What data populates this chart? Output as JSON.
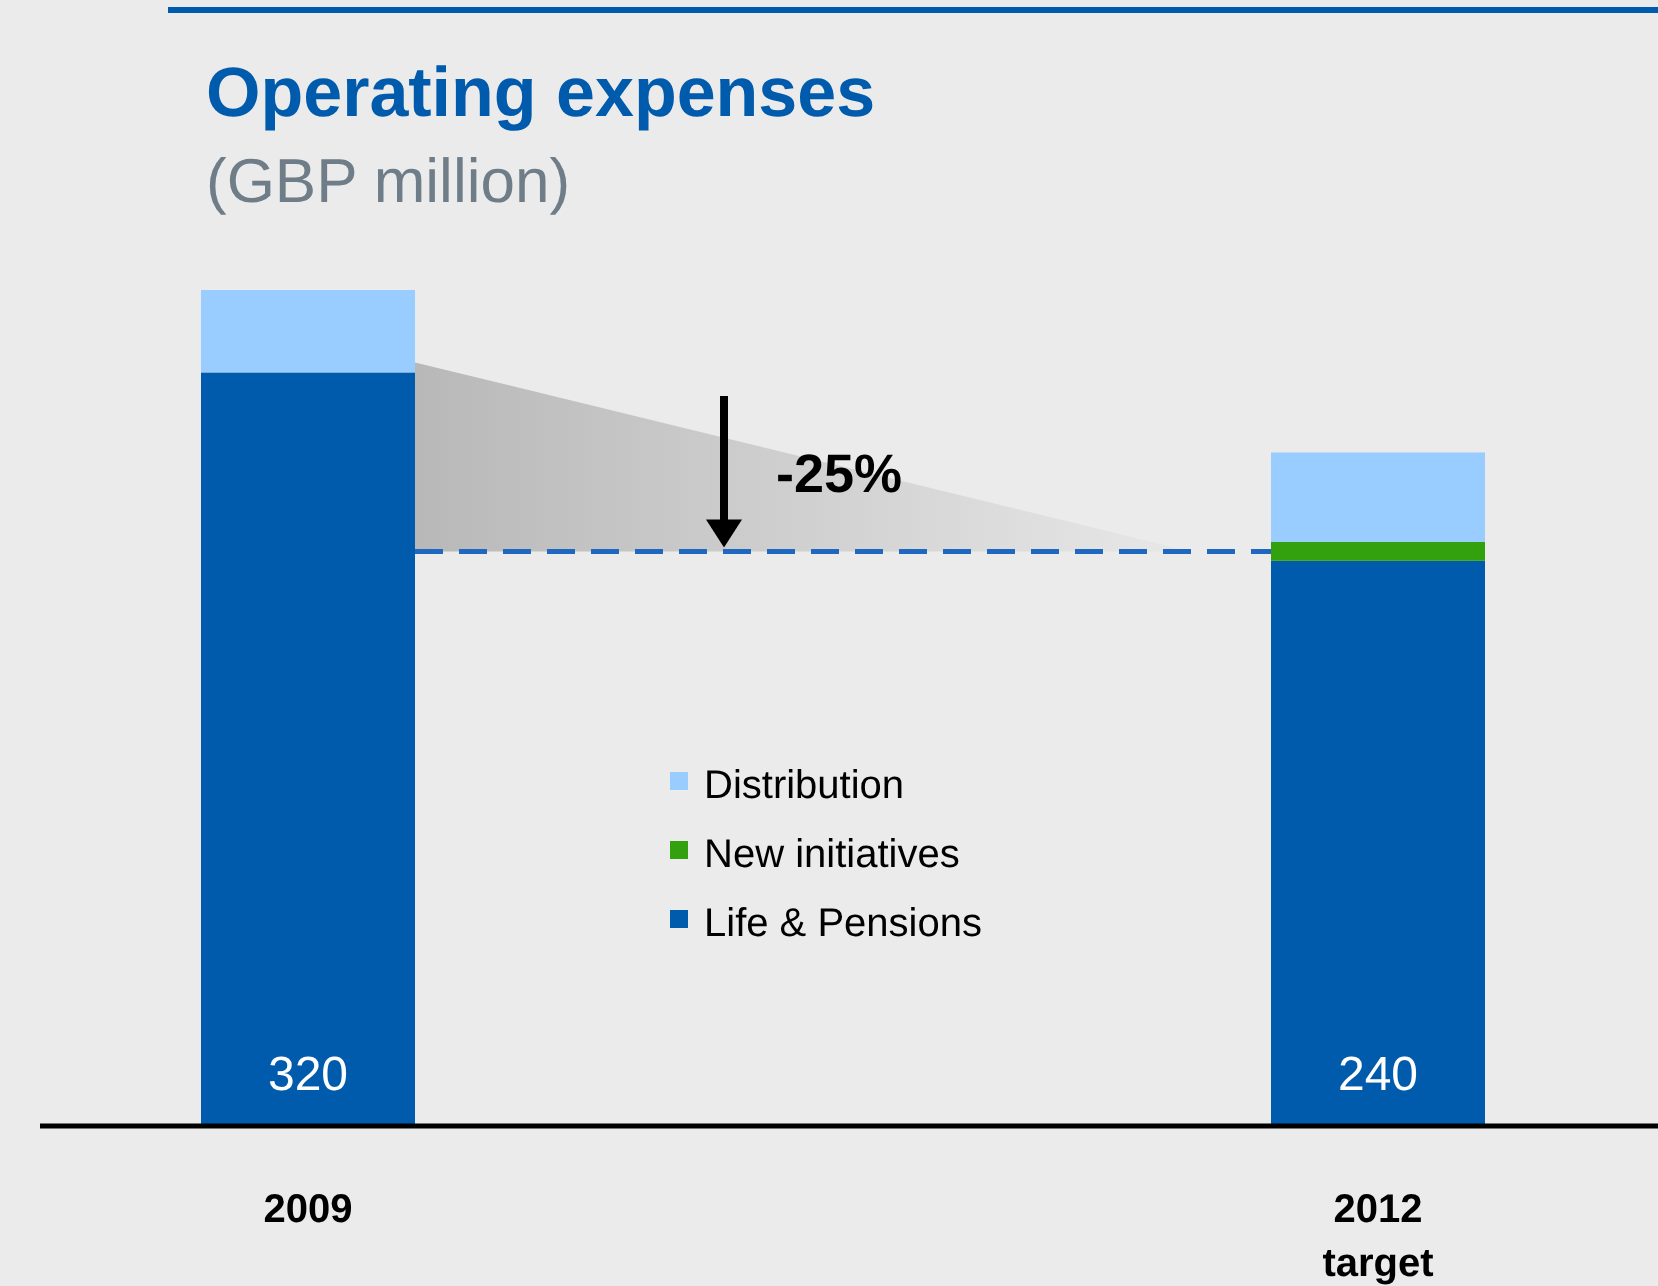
{
  "chart_data": {
    "type": "bar",
    "title": "Operating expenses",
    "subtitle": "(GBP million)",
    "categories": [
      "2009",
      "2012\ntarget"
    ],
    "stacked": true,
    "legend": "center",
    "series": [
      {
        "name": "Life & Pensions",
        "color": "#005bac",
        "values": [
          320,
          240
        ],
        "value_labels": [
          "320",
          "240"
        ]
      },
      {
        "name": "New initiatives",
        "color": "#33a10e",
        "values": [
          null,
          8
        ]
      },
      {
        "name": "Distribution",
        "color": "#99ccff",
        "values": [
          35,
          38
        ]
      }
    ],
    "ref_lines": [
      {
        "axis": "y",
        "value": 244,
        "color": "#1f68bf",
        "line_style": "dashed"
      }
    ],
    "annotations": [
      "-25%"
    ]
  }
}
